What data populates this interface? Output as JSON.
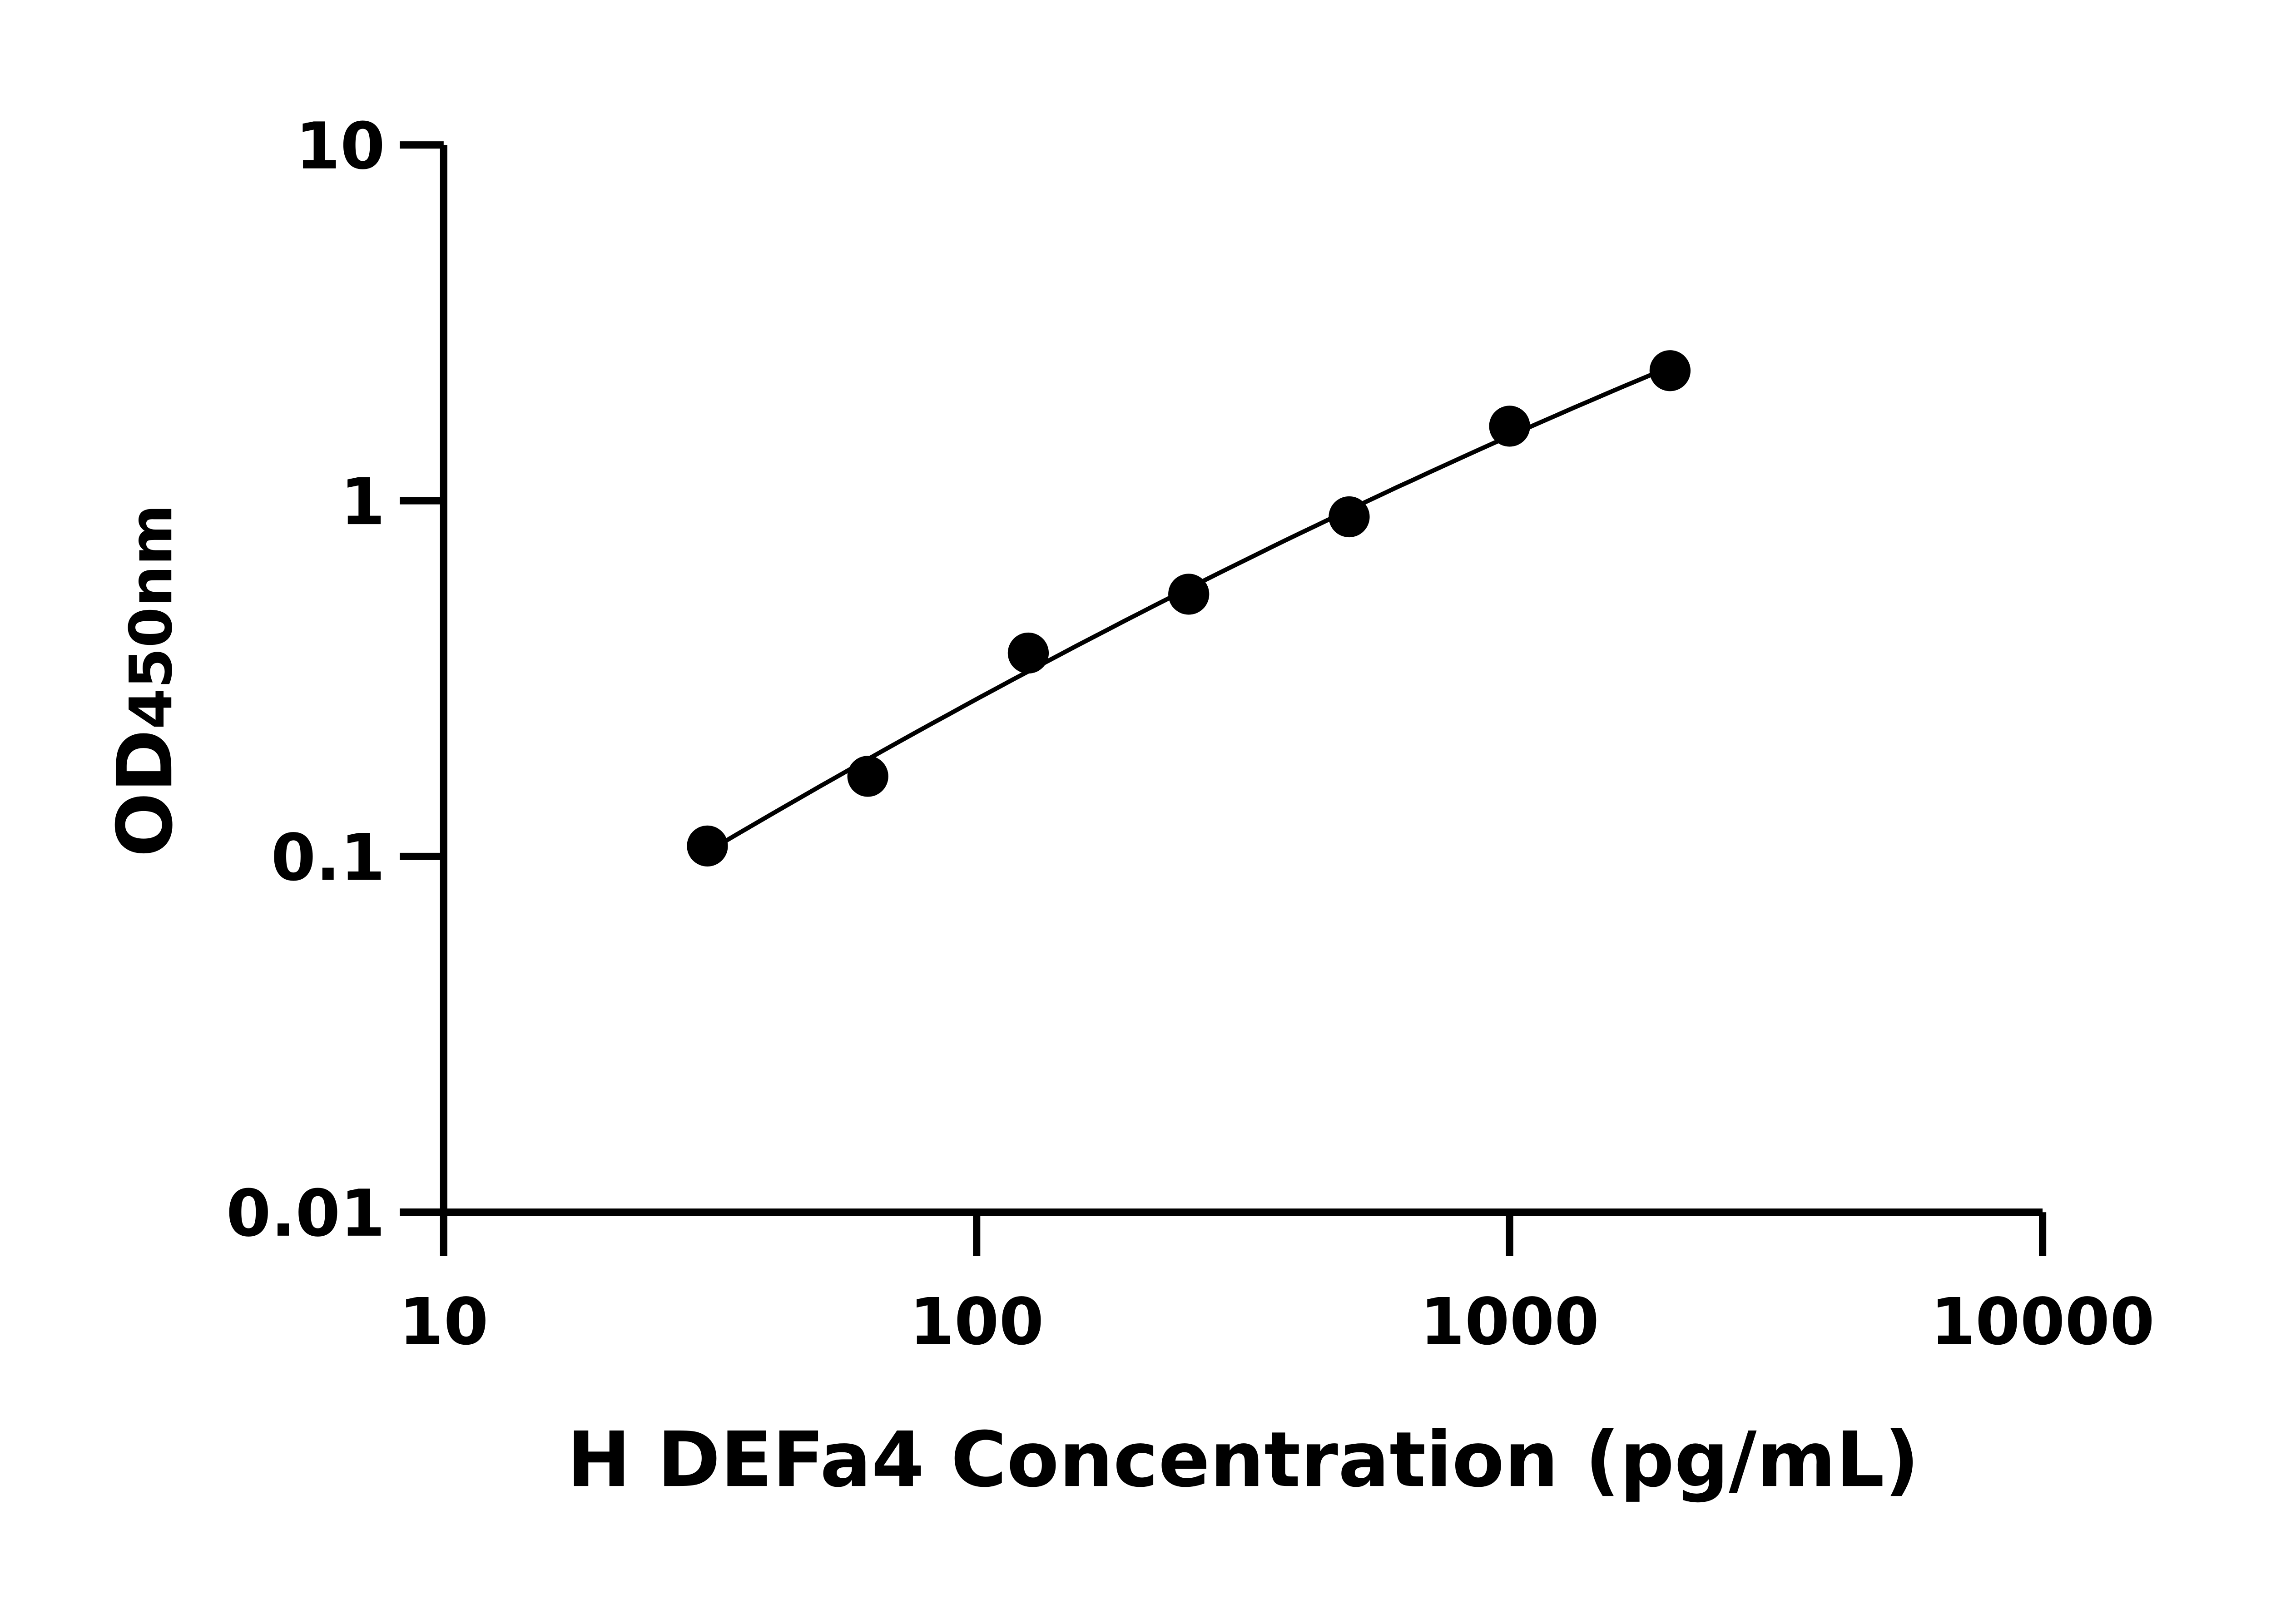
{
  "chart_data": {
    "type": "scatter",
    "xlabel": "H DEFa4 Concentration (pg/mL)",
    "ylabel": "OD",
    "ylabel_subscript": "450nm",
    "x_scale": "log",
    "y_scale": "log",
    "xlim": [
      10,
      10000
    ],
    "ylim": [
      0.01,
      10
    ],
    "x_ticks": [
      "10",
      "100",
      "1000",
      "10000"
    ],
    "y_ticks": [
      "0.01",
      "0.1",
      "1",
      "10"
    ],
    "grid": false,
    "fit_line": true,
    "color": "#000000",
    "series": [
      {
        "x": [
          31.25,
          62.5,
          125,
          250,
          500,
          1000,
          2000
        ],
        "y": [
          0.107,
          0.168,
          0.373,
          0.546,
          0.901,
          1.62,
          2.32
        ]
      }
    ]
  }
}
